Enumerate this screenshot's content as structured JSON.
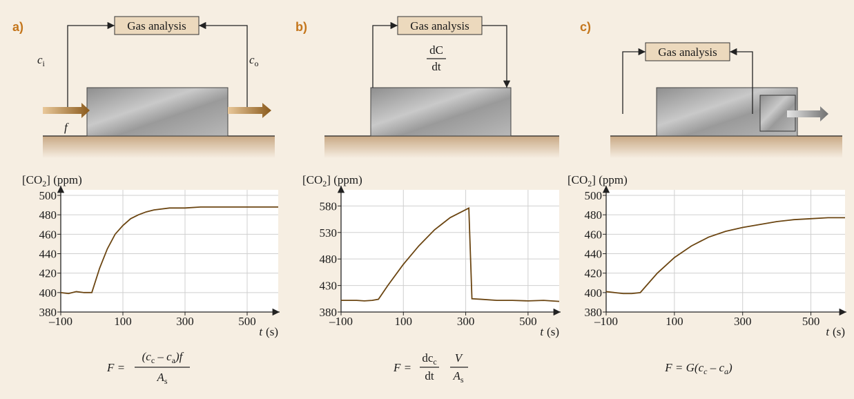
{
  "chart_data": [
    {
      "type": "line",
      "panel": "a)",
      "diagram": {
        "box": "Gas analysis",
        "inlet": [
          "c",
          "i"
        ],
        "outlet": [
          "c",
          "o"
        ],
        "flow": "f"
      },
      "y_label": [
        "[CO",
        "2",
        "] (ppm)"
      ],
      "x_label": [
        "t",
        "(s)"
      ],
      "formula": {
        "lhs": "F =",
        "num": [
          "(c",
          "c",
          " – c",
          "a",
          ")f"
        ],
        "den": [
          "A",
          "s"
        ]
      },
      "x": [
        -100,
        -75,
        -50,
        -25,
        0,
        25,
        50,
        75,
        100,
        125,
        150,
        175,
        200,
        250,
        300,
        350,
        400,
        450,
        500,
        550,
        600
      ],
      "values": [
        400,
        399,
        401,
        400,
        400,
        425,
        445,
        460,
        469,
        476,
        480,
        483,
        485,
        487,
        487,
        488,
        488,
        488,
        488,
        488,
        488
      ],
      "color": "#6b4511",
      "xlim": [
        -100,
        600
      ],
      "ylim": [
        380,
        500
      ],
      "xticks": [
        {
          "value": -100,
          "label": "–100"
        },
        100,
        300,
        500
      ],
      "yticks": [
        380,
        400,
        420,
        440,
        460,
        480,
        500
      ]
    },
    {
      "type": "line",
      "panel": "b)",
      "diagram": {
        "box": "Gas analysis",
        "rate": [
          "dC",
          "dt"
        ]
      },
      "y_label": [
        "[CO",
        "2",
        "] (ppm)"
      ],
      "x_label": [
        "t",
        "(s)"
      ],
      "formula": {
        "lhs": "F =",
        "num": [
          "dc",
          "c"
        ],
        "den": [
          "dt"
        ],
        "num2": [
          "V"
        ],
        "den2": [
          "A",
          "s"
        ]
      },
      "x": [
        -100,
        -50,
        -25,
        0,
        20,
        50,
        100,
        150,
        200,
        250,
        310,
        320,
        350,
        400,
        450,
        500,
        550,
        600
      ],
      "values": [
        402,
        402,
        401,
        402,
        404,
        430,
        470,
        505,
        535,
        558,
        576,
        405,
        404,
        402,
        402,
        401,
        402,
        400
      ],
      "color": "#6b4511",
      "xlim": [
        -100,
        600
      ],
      "ylim": [
        380,
        600
      ],
      "xticks": [
        {
          "value": -100,
          "label": "–100"
        },
        100,
        300,
        500
      ],
      "yticks": [
        380,
        430,
        480,
        530,
        580
      ]
    },
    {
      "type": "line",
      "panel": "c)",
      "diagram": {
        "box": "Gas analysis"
      },
      "y_label": [
        "[CO",
        "2",
        "] (ppm)"
      ],
      "x_label": [
        "t",
        "(s)"
      ],
      "formula": {
        "parts": [
          "F = G(c",
          "c",
          " – c",
          "a",
          ")"
        ]
      },
      "x": [
        -100,
        -75,
        -50,
        -25,
        0,
        25,
        50,
        100,
        150,
        200,
        250,
        300,
        350,
        400,
        450,
        500,
        550,
        600
      ],
      "values": [
        401,
        400,
        399,
        399,
        400,
        410,
        420,
        436,
        448,
        457,
        463,
        467,
        470,
        473,
        475,
        476,
        477,
        477
      ],
      "color": "#6b4511",
      "xlim": [
        -100,
        600
      ],
      "ylim": [
        380,
        500
      ],
      "xticks": [
        {
          "value": -100,
          "label": "–100"
        },
        100,
        300,
        500
      ],
      "yticks": [
        380,
        400,
        420,
        440,
        460,
        480,
        500
      ]
    }
  ]
}
